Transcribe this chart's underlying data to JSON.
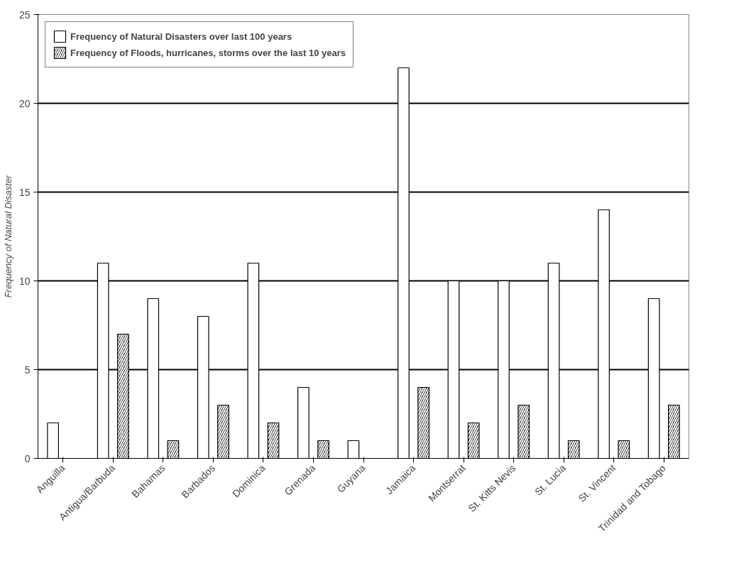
{
  "chart_data": {
    "type": "bar",
    "ylabel": "Frequency of Natural Disaster",
    "categories": [
      "Anguilla",
      "Antigua/Barbuda",
      "Bahamas",
      "Barbados",
      "Dominica",
      "Grenada",
      "Guyana",
      "Jamaica",
      "Montserrat",
      "St. Kitts Nevis",
      "St. Lucia",
      "St. Vincent",
      "Trinidad and Tobago"
    ],
    "series": [
      {
        "name": "Frequency of Natural Disasters over last 100 years",
        "color": "#ffffff",
        "values": [
          2,
          11,
          9,
          8,
          11,
          4,
          1,
          22,
          10,
          10,
          11,
          14,
          9
        ]
      },
      {
        "name": "Frequency of Floods, hurricanes, storms over the last 10 years",
        "color": "#000000",
        "values": [
          null,
          7,
          1,
          3,
          2,
          1,
          null,
          4,
          2,
          3,
          1,
          1,
          3
        ]
      }
    ],
    "ylim": [
      0,
      25
    ],
    "yticks": [
      0,
      5,
      10,
      15,
      20,
      25
    ],
    "grid": "y",
    "legend": "top"
  }
}
